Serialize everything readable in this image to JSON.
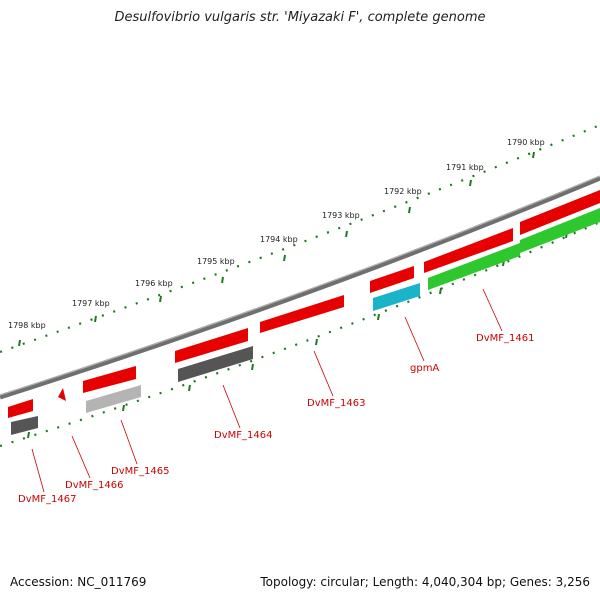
{
  "title": "Desulfovibrio vulgaris str. 'Miyazaki F', complete genome",
  "accession": "Accession: NC_011769",
  "topology": "Topology: circular; Length: 4,040,304 bp; Genes: 3,256",
  "colors": {
    "backbone": "#7a7a7a",
    "tick": "#1f7a1f",
    "gene_forward": "#e60000",
    "gene_reverse": "#2ec82e",
    "gene_cyan": "#1ab3c8",
    "gene_dark": "#555555",
    "gene_light": "#b4b4b4",
    "label": "#cc0000"
  },
  "scale_labels": [
    "1790 kbp",
    "1791 kbp",
    "1792 kbp",
    "1793 kbp",
    "1794 kbp",
    "1795 kbp",
    "1796 kbp",
    "1797 kbp",
    "1798 kbp"
  ],
  "gene_labels": [
    "DvMF_1461",
    "gpmA",
    "DvMF_1463",
    "DvMF_1464",
    "DvMF_1465",
    "DvMF_1466",
    "DvMF_1467"
  ]
}
